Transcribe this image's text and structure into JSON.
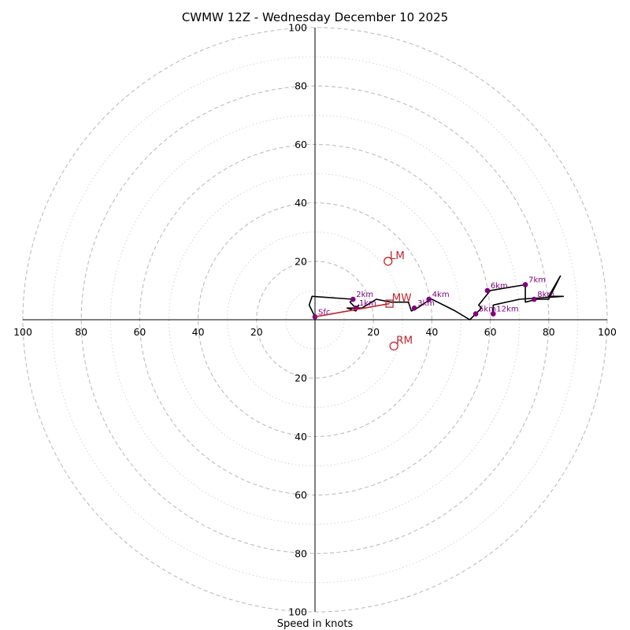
{
  "chart_data": {
    "type": "scatter",
    "title": "CWMW 12Z - Wednesday December 10 2025",
    "xlabel": "Speed in knots",
    "range_max": 100,
    "ring_major_step": 20,
    "ring_minor_step": 10,
    "tick_labels": {
      "right": [
        "20",
        "40",
        "60",
        "80",
        "100"
      ],
      "left": [
        "20",
        "40",
        "60",
        "80",
        "100"
      ],
      "up": [
        "20",
        "40",
        "60",
        "80",
        "100"
      ],
      "down": [
        "20",
        "40",
        "60",
        "80",
        "100"
      ]
    },
    "hodograph": {
      "color": "#000000",
      "points": [
        [
          0,
          1
        ],
        [
          -2,
          5
        ],
        [
          -1,
          8
        ],
        [
          13,
          7
        ],
        [
          12,
          6
        ],
        [
          14,
          4
        ],
        [
          15,
          5
        ],
        [
          14,
          3
        ],
        [
          11,
          4
        ],
        [
          16,
          4
        ],
        [
          21,
          7
        ],
        [
          26,
          6
        ],
        [
          32,
          6
        ],
        [
          33,
          3
        ],
        [
          35,
          4
        ],
        [
          38,
          6
        ],
        [
          40,
          7
        ],
        [
          44,
          5
        ],
        [
          48,
          3
        ],
        [
          53,
          0
        ],
        [
          55,
          2
        ],
        [
          57,
          4
        ],
        [
          56,
          5
        ],
        [
          60,
          10
        ],
        [
          66,
          11
        ],
        [
          72,
          12
        ],
        [
          72,
          6
        ],
        [
          76,
          7
        ],
        [
          80,
          7
        ],
        [
          84,
          15
        ],
        [
          80,
          8
        ],
        [
          85,
          8
        ],
        [
          70,
          7
        ],
        [
          61,
          5
        ],
        [
          61,
          2
        ]
      ]
    },
    "levels": [
      {
        "label": "Sfc",
        "u": 0,
        "v": 1
      },
      {
        "label": "1km",
        "u": 14,
        "v": 4
      },
      {
        "label": "2km",
        "u": 13,
        "v": 7
      },
      {
        "label": "3km",
        "u": 34,
        "v": 4
      },
      {
        "label": "4km",
        "u": 39,
        "v": 7
      },
      {
        "label": "5km",
        "u": 55,
        "v": 2
      },
      {
        "label": "6km",
        "u": 59,
        "v": 10
      },
      {
        "label": "7km",
        "u": 72,
        "v": 12
      },
      {
        "label": "8km",
        "u": 75,
        "v": 7
      },
      {
        "label": "12km",
        "u": 61,
        "v": 2
      }
    ],
    "storm_motion": {
      "color": "#c0272d",
      "bunkers_left": {
        "label": "LM",
        "u": 25,
        "v": 20
      },
      "mean_wind": {
        "label": "MW",
        "u": 25.5,
        "v": 5.5
      },
      "bunkers_right": {
        "label": "RM",
        "u": 27,
        "v": -9
      },
      "shear_vector": {
        "from": [
          0,
          1
        ],
        "to": [
          25.5,
          5.5
        ]
      }
    },
    "level_color": "#800080",
    "grid": true
  }
}
